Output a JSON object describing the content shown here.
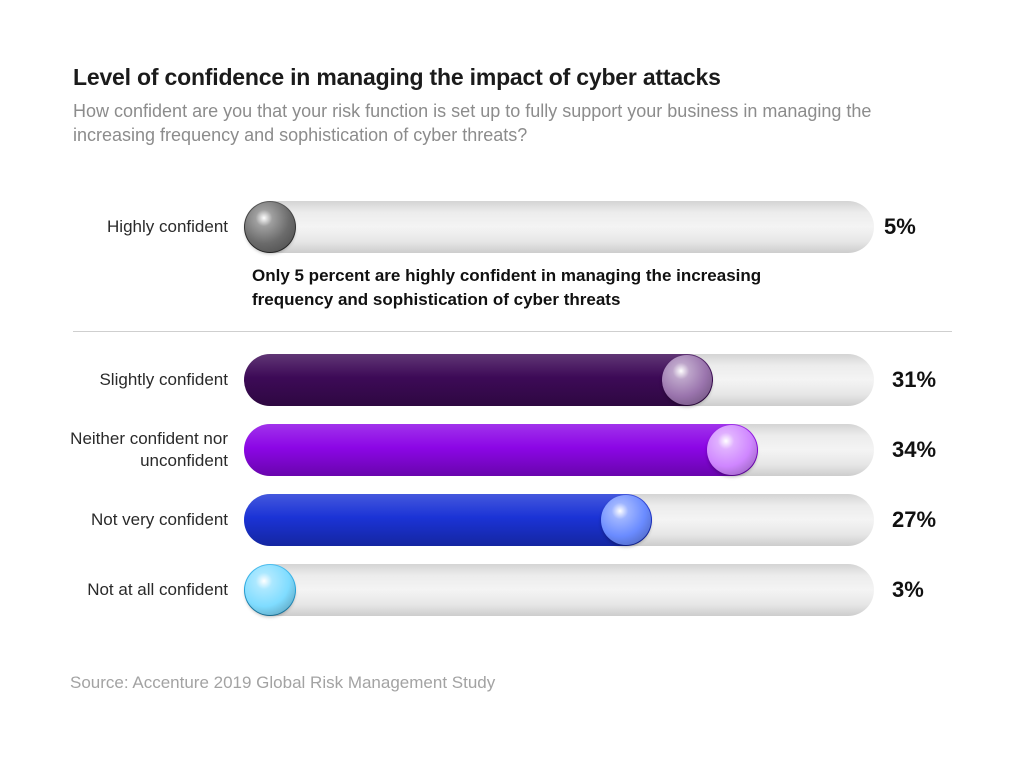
{
  "title": "Level of confidence in managing the impact of cyber attacks",
  "subtitle": "How confident are you that your risk function is set up to fully support your business in managing the increasing frequency and sophistication of cyber threats?",
  "annotation": "Only 5 percent are highly confident in managing the increasing frequency and sophistication of cyber threats",
  "source": "Source: Accenture 2019 Global Risk Management Study",
  "chart_data": {
    "type": "bar",
    "orientation": "horizontal",
    "title": "Level of confidence in managing the impact of cyber attacks",
    "xlim": [
      0,
      100
    ],
    "bars": [
      {
        "category": "Highly confident",
        "value": 5,
        "value_label": "5%",
        "fill_color": "#3a3a3a",
        "ball_color": "#6b6b6b"
      },
      {
        "category": "Slightly confident",
        "value": 31,
        "value_label": "31%",
        "fill_color": "#3d0a57",
        "ball_color": "#9a74ad"
      },
      {
        "category": "Neither confident nor unconfident",
        "value": 34,
        "value_label": "34%",
        "fill_color": "#8c06e6",
        "ball_color": "#cf86ff"
      },
      {
        "category": "Not very confident",
        "value": 27,
        "value_label": "27%",
        "fill_color": "#1b33d6",
        "ball_color": "#6a8bff"
      },
      {
        "category": "Not at all confident",
        "value": 3,
        "value_label": "3%",
        "fill_color": "#2ab4f0",
        "ball_color": "#7fdcff"
      }
    ]
  }
}
